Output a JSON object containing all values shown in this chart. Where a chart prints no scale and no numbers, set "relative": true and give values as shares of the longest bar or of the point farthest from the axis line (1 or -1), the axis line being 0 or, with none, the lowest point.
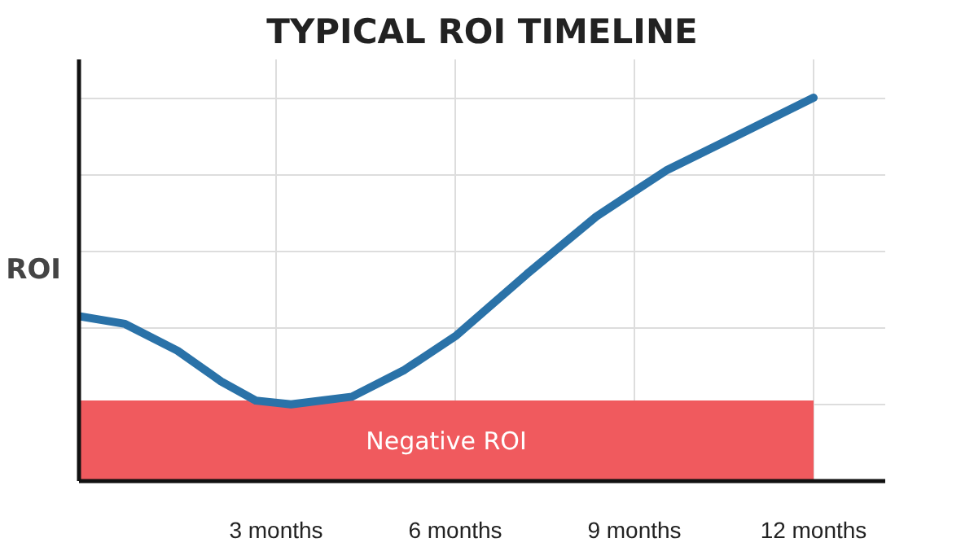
{
  "chart_data": {
    "type": "line",
    "title": "TYPICAL ROI TIMELINE",
    "ylabel": "ROI",
    "relative": true,
    "x": [
      -0.3,
      0.47,
      1.35,
      2.08,
      2.66,
      3.25,
      4.27,
      5.15,
      6.02,
      7.2,
      8.36,
      9.53,
      10.7,
      12.0
    ],
    "series": [
      {
        "color": "#2a72a8",
        "values": [
          0.43,
          0.41,
          0.34,
          0.26,
          0.21,
          0.2,
          0.22,
          0.29,
          0.38,
          0.54,
          0.69,
          0.81,
          0.9,
          1.0
        ]
      }
    ],
    "xlim": [
      -0.3,
      13.2
    ],
    "xticks": [
      {
        "value": 3,
        "label": "3 months"
      },
      {
        "value": 6,
        "label": "6 months"
      },
      {
        "value": 9,
        "label": "9 months"
      },
      {
        "value": 12,
        "label": "12 months"
      }
    ],
    "bands": [
      {
        "axis": "y",
        "from": 0,
        "to": 0.21,
        "label": "Negative ROI",
        "color": "#f05a5e"
      }
    ],
    "grid": true,
    "marker": "none",
    "line_style": "solid"
  }
}
